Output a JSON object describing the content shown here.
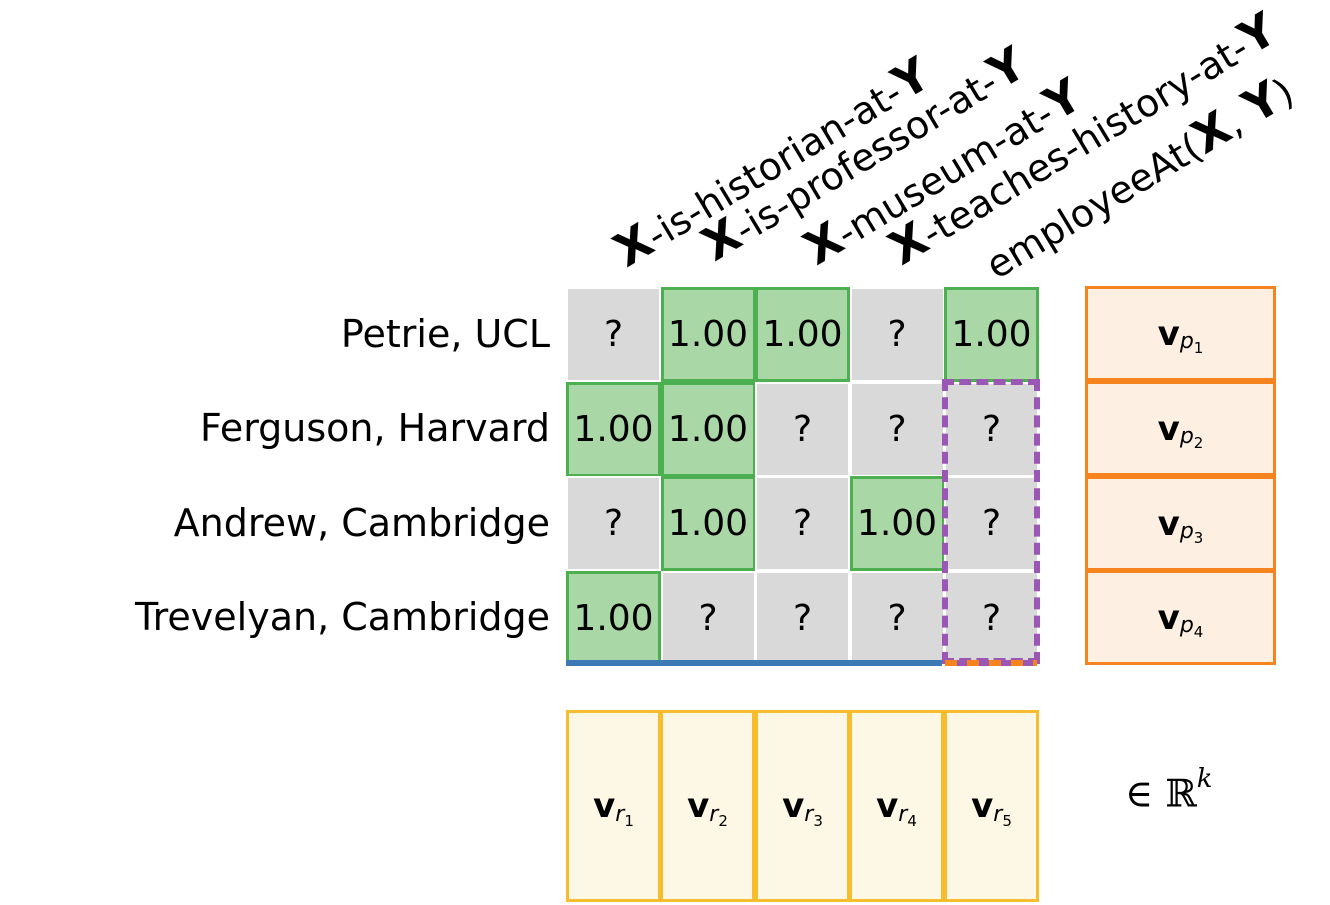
{
  "columns": [
    {
      "var_x": "X",
      "middle": "-is-historian-at-",
      "var_y": "Y",
      "tail": ""
    },
    {
      "var_x": "X",
      "middle": "-is-professor-at-",
      "var_y": "Y",
      "tail": ""
    },
    {
      "var_x": "X",
      "middle": "-museum-at-",
      "var_y": "Y",
      "tail": ""
    },
    {
      "var_x": "X",
      "middle": "-teaches-history-at-",
      "var_y": "Y",
      "tail": ""
    },
    {
      "prefix": "employeeAt(",
      "var_x": "X",
      "sep": ", ",
      "var_y": "Y",
      "tail": ")"
    }
  ],
  "rows": [
    {
      "label": "Petrie, UCL",
      "cells": [
        "?",
        "1.00",
        "1.00",
        "?",
        "1.00"
      ],
      "known": [
        false,
        true,
        true,
        false,
        true
      ]
    },
    {
      "label": "Ferguson, Harvard",
      "cells": [
        "1.00",
        "1.00",
        "?",
        "?",
        "?"
      ],
      "known": [
        true,
        true,
        false,
        false,
        false
      ]
    },
    {
      "label": "Andrew, Cambridge",
      "cells": [
        "?",
        "1.00",
        "?",
        "1.00",
        "?"
      ],
      "known": [
        false,
        true,
        false,
        true,
        false
      ]
    },
    {
      "label": "Trevelyan, Cambridge",
      "cells": [
        "1.00",
        "?",
        "?",
        "?",
        "?"
      ],
      "known": [
        true,
        false,
        false,
        false,
        false
      ]
    }
  ],
  "entity_vectors": [
    {
      "symbol": "v",
      "sub": "p",
      "index": "1"
    },
    {
      "symbol": "v",
      "sub": "p",
      "index": "2"
    },
    {
      "symbol": "v",
      "sub": "p",
      "index": "3"
    },
    {
      "symbol": "v",
      "sub": "p",
      "index": "4"
    }
  ],
  "relation_vectors": [
    {
      "symbol": "v",
      "sub": "r",
      "index": "1"
    },
    {
      "symbol": "v",
      "sub": "r",
      "index": "2"
    },
    {
      "symbol": "v",
      "sub": "r",
      "index": "3"
    },
    {
      "symbol": "v",
      "sub": "r",
      "index": "4"
    },
    {
      "symbol": "v",
      "sub": "r",
      "index": "5"
    }
  ],
  "space": {
    "member": "∈ ℝ",
    "exponent": "k"
  },
  "colors": {
    "known_fill": "#a9d8a6",
    "known_border": "#4caf50",
    "unknown_fill": "#d9d9d9",
    "target_dash": "#9a57b4",
    "entity_border": "#f5841f",
    "entity_fill": "#fdf0e3",
    "relation_border": "#f7bd2e",
    "relation_fill": "#fdf7e6",
    "axis_line": "#3b7ab5"
  }
}
